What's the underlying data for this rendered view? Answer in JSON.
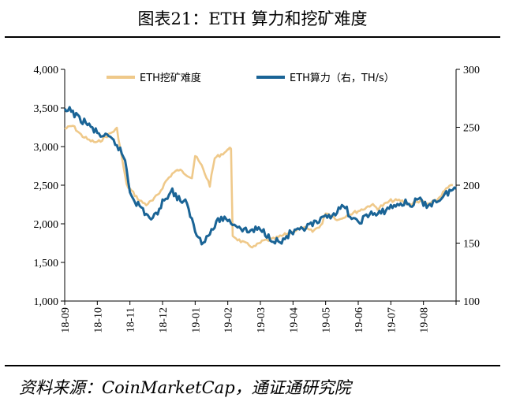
{
  "title": "图表21：ETH 算力和挖矿难度",
  "source": "资料来源：CoinMarketCap，通证通研究院",
  "chart_data": {
    "type": "line",
    "title": "图表21：ETH 算力和挖矿难度",
    "x_labels": [
      "18-09",
      "18-10",
      "18-11",
      "18-12",
      "19-01",
      "19-02",
      "19-03",
      "19-04",
      "19-05",
      "19-06",
      "19-07",
      "19-08"
    ],
    "y_left": {
      "min": 1000,
      "max": 4000,
      "ticks": [
        "1,000",
        "1,500",
        "2,000",
        "2,500",
        "3,000",
        "3,500",
        "4,000"
      ]
    },
    "y_right": {
      "min": 100,
      "max": 300,
      "ticks": [
        "100",
        "150",
        "200",
        "250",
        "300"
      ]
    },
    "series": [
      {
        "name": "ETH挖矿难度",
        "axis": "left",
        "color": "#EFC98A",
        "values": [
          3230,
          3270,
          3150,
          3080,
          3050,
          3230,
          2500,
          2400,
          2300,
          2250,
          2300,
          2400,
          2550,
          2650,
          2700,
          2650,
          2600,
          2880,
          2750,
          2600,
          2500,
          2850,
          2900,
          2950,
          3000,
          2950,
          1850,
          1800,
          1750,
          1700,
          1780,
          1800,
          1850,
          1900,
          1950,
          1900,
          2000,
          2150,
          2100,
          2050,
          2100,
          2150,
          2200,
          2250,
          2200,
          2250,
          2300,
          2300,
          2250,
          2300,
          2250,
          2300,
          2450,
          2500
        ],
        "dates_index": [
          0,
          0.25,
          0.5,
          0.75,
          1.0,
          1.6,
          1.9,
          2.1,
          2.3,
          2.5,
          2.7,
          2.9,
          3.1,
          3.3,
          3.5,
          3.7,
          3.9,
          4.0,
          4.2,
          4.35,
          4.45,
          4.6,
          4.8,
          5.0,
          5.05,
          5.1,
          5.15,
          5.3,
          5.5,
          5.8,
          6.1,
          6.4,
          6.7,
          7.0,
          7.3,
          7.6,
          7.9,
          8.0,
          8.2,
          8.4,
          8.6,
          8.9,
          9.2,
          9.4,
          9.6,
          9.8,
          10.0,
          10.3,
          10.6,
          10.9,
          11.1,
          11.4,
          11.7,
          11.9
        ]
      },
      {
        "name": "ETH算力（右，TH/s）",
        "axis": "right",
        "color": "#1A6496",
        "values": [
          263,
          265,
          258,
          255,
          250,
          245,
          242,
          240,
          235,
          222,
          195,
          185,
          175,
          170,
          180,
          190,
          195,
          188,
          185,
          175,
          160,
          152,
          156,
          165,
          172,
          170,
          165,
          160,
          162,
          160,
          155,
          152,
          150,
          158,
          160,
          165,
          168,
          172,
          175,
          178,
          182,
          170,
          168,
          172,
          176,
          174,
          180,
          182,
          185,
          183,
          188,
          182,
          185,
          190,
          195,
          197
        ],
        "dates_index": [
          0,
          0.2,
          0.4,
          0.6,
          0.8,
          1.0,
          1.2,
          1.4,
          1.6,
          1.85,
          2.0,
          2.2,
          2.5,
          2.7,
          2.9,
          3.1,
          3.3,
          3.5,
          3.7,
          3.85,
          4.0,
          4.2,
          4.4,
          4.6,
          4.8,
          5.0,
          5.3,
          5.6,
          5.9,
          6.1,
          6.3,
          6.5,
          6.6,
          6.9,
          7.2,
          7.5,
          7.8,
          8.0,
          8.2,
          8.4,
          8.6,
          8.8,
          9.0,
          9.2,
          9.4,
          9.6,
          9.9,
          10.1,
          10.4,
          10.6,
          10.9,
          11.0,
          11.3,
          11.6,
          11.8,
          12.0
        ]
      }
    ],
    "legend": [
      "ETH挖矿难度",
      "ETH算力（右，TH/s）"
    ]
  }
}
